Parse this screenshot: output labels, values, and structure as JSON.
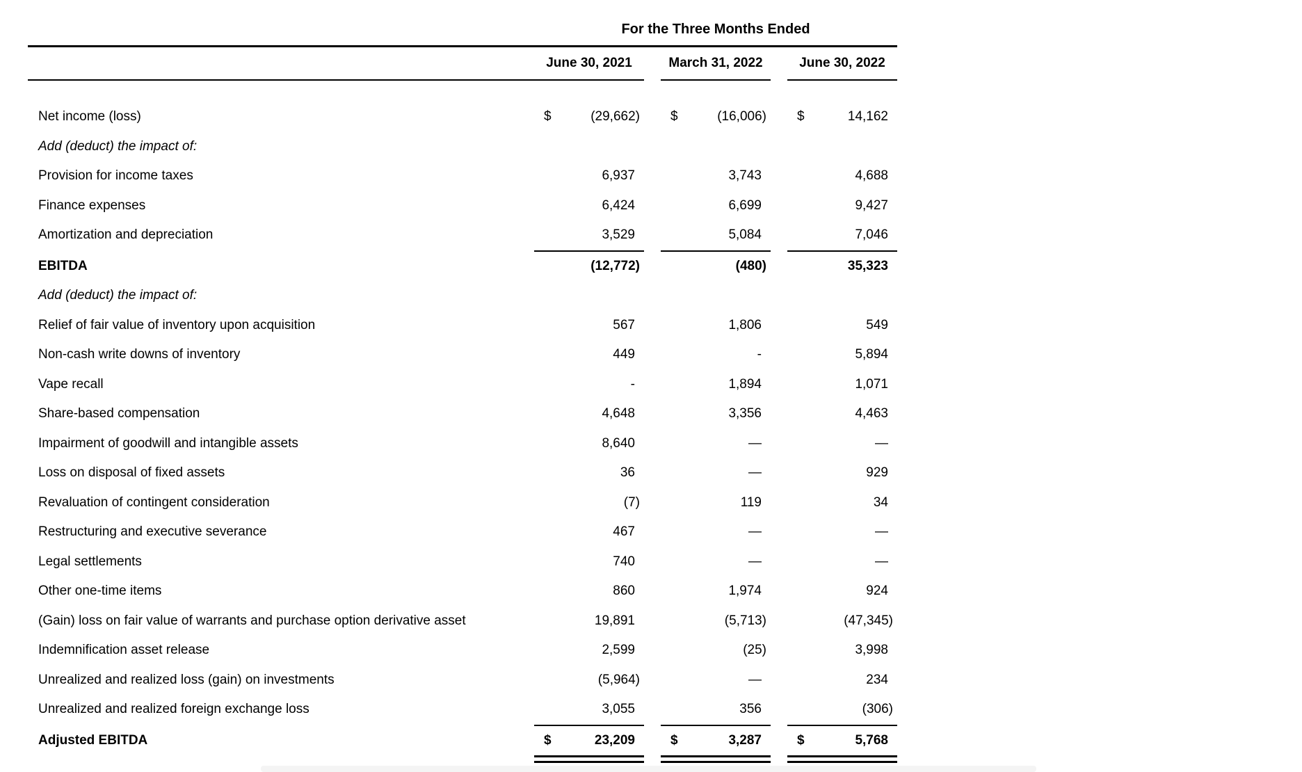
{
  "header": {
    "title": "For the Three Months Ended",
    "columns": [
      "June 30, 2021",
      "March 31, 2022",
      "June 30, 2022"
    ]
  },
  "table": {
    "currency_symbol": "$",
    "rows": [
      {
        "label": "Net income (loss)",
        "dollar": true,
        "values": [
          "(29,662)",
          "(16,006)",
          "14,162"
        ]
      },
      {
        "label": "Add (deduct) the impact of:",
        "style": "italic",
        "values": [
          "",
          "",
          ""
        ]
      },
      {
        "label": "Provision for income taxes",
        "values": [
          "6,937",
          "3,743",
          "4,688"
        ]
      },
      {
        "label": "Finance expenses",
        "values": [
          "6,424",
          "6,699",
          "9,427"
        ]
      },
      {
        "label": "Amortization and depreciation",
        "values": [
          "3,529",
          "5,084",
          "7,046"
        ],
        "rule_below": "single"
      },
      {
        "label": "EBITDA",
        "style": "bold",
        "values": [
          "(12,772)",
          "(480)",
          "35,323"
        ]
      },
      {
        "label": "Add (deduct) the impact of:",
        "style": "italic",
        "values": [
          "",
          "",
          ""
        ]
      },
      {
        "label": "Relief of fair value of inventory upon acquisition",
        "values": [
          "567",
          "1,806",
          "549"
        ]
      },
      {
        "label": "Non-cash write downs of inventory",
        "values": [
          "449",
          "-",
          "5,894"
        ]
      },
      {
        "label": "Vape recall",
        "values": [
          "-",
          "1,894",
          "1,071"
        ]
      },
      {
        "label": "Share-based compensation",
        "values": [
          "4,648",
          "3,356",
          "4,463"
        ]
      },
      {
        "label": "Impairment of goodwill and intangible assets",
        "values": [
          "8,640",
          "—",
          "—"
        ]
      },
      {
        "label": "Loss on disposal of fixed assets",
        "values": [
          "36",
          "—",
          "929"
        ]
      },
      {
        "label": "Revaluation of contingent consideration",
        "values": [
          "(7)",
          "119",
          "34"
        ]
      },
      {
        "label": "Restructuring and executive severance",
        "values": [
          "467",
          "—",
          "—"
        ]
      },
      {
        "label": "Legal settlements",
        "values": [
          "740",
          "—",
          "—"
        ]
      },
      {
        "label": "Other one-time items",
        "values": [
          "860",
          "1,974",
          "924"
        ]
      },
      {
        "label": "(Gain) loss on fair value of warrants and purchase option derivative asset",
        "values": [
          "19,891",
          "(5,713)",
          "(47,345)"
        ]
      },
      {
        "label": "Indemnification asset release",
        "values": [
          "2,599",
          "(25)",
          "3,998"
        ]
      },
      {
        "label": "Unrealized and realized loss (gain) on investments",
        "values": [
          "(5,964)",
          "—",
          "234"
        ]
      },
      {
        "label": "Unrealized and realized foreign exchange loss",
        "values": [
          "3,055",
          "356",
          "(306)"
        ],
        "rule_below": "single"
      },
      {
        "label": "Adjusted EBITDA",
        "style": "bold",
        "dollar": true,
        "values": [
          "23,209",
          "3,287",
          "5,768"
        ],
        "rule_below": "double"
      }
    ]
  },
  "colors": {
    "text": "#000000",
    "rule": "#000000",
    "background": "#ffffff",
    "footer_bar": "#f4f4f4"
  }
}
